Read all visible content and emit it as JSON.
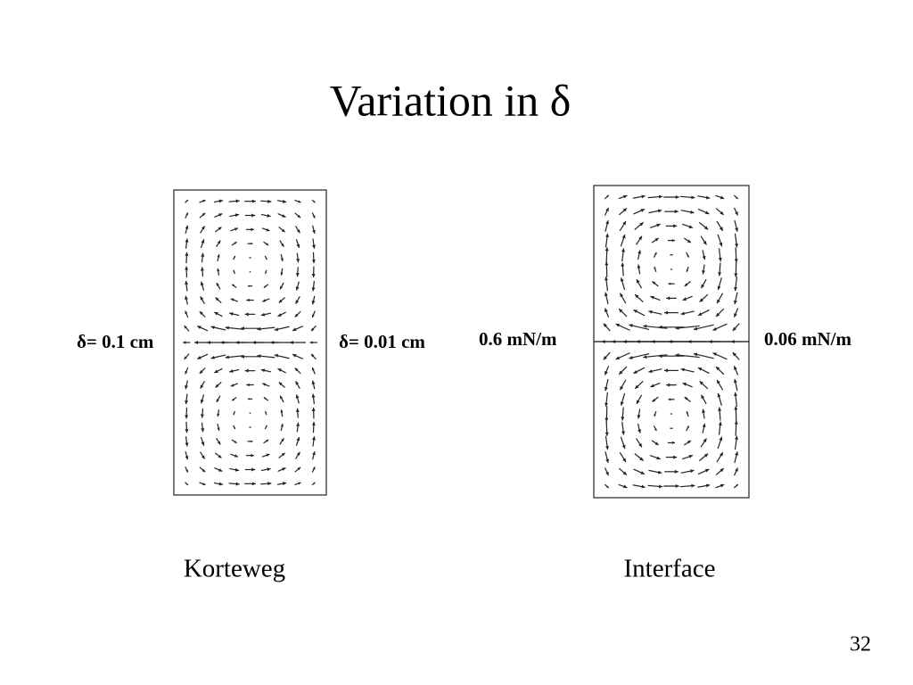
{
  "title": "Variation in δ",
  "panels": [
    {
      "left_label": "δ= 0.1 cm",
      "right_label": "δ= 0.01 cm",
      "caption": "Korteweg"
    },
    {
      "left_label": "0.6 mN/m",
      "right_label": "0.06 mN/m",
      "caption": "Interface"
    }
  ],
  "page_number": "32"
}
